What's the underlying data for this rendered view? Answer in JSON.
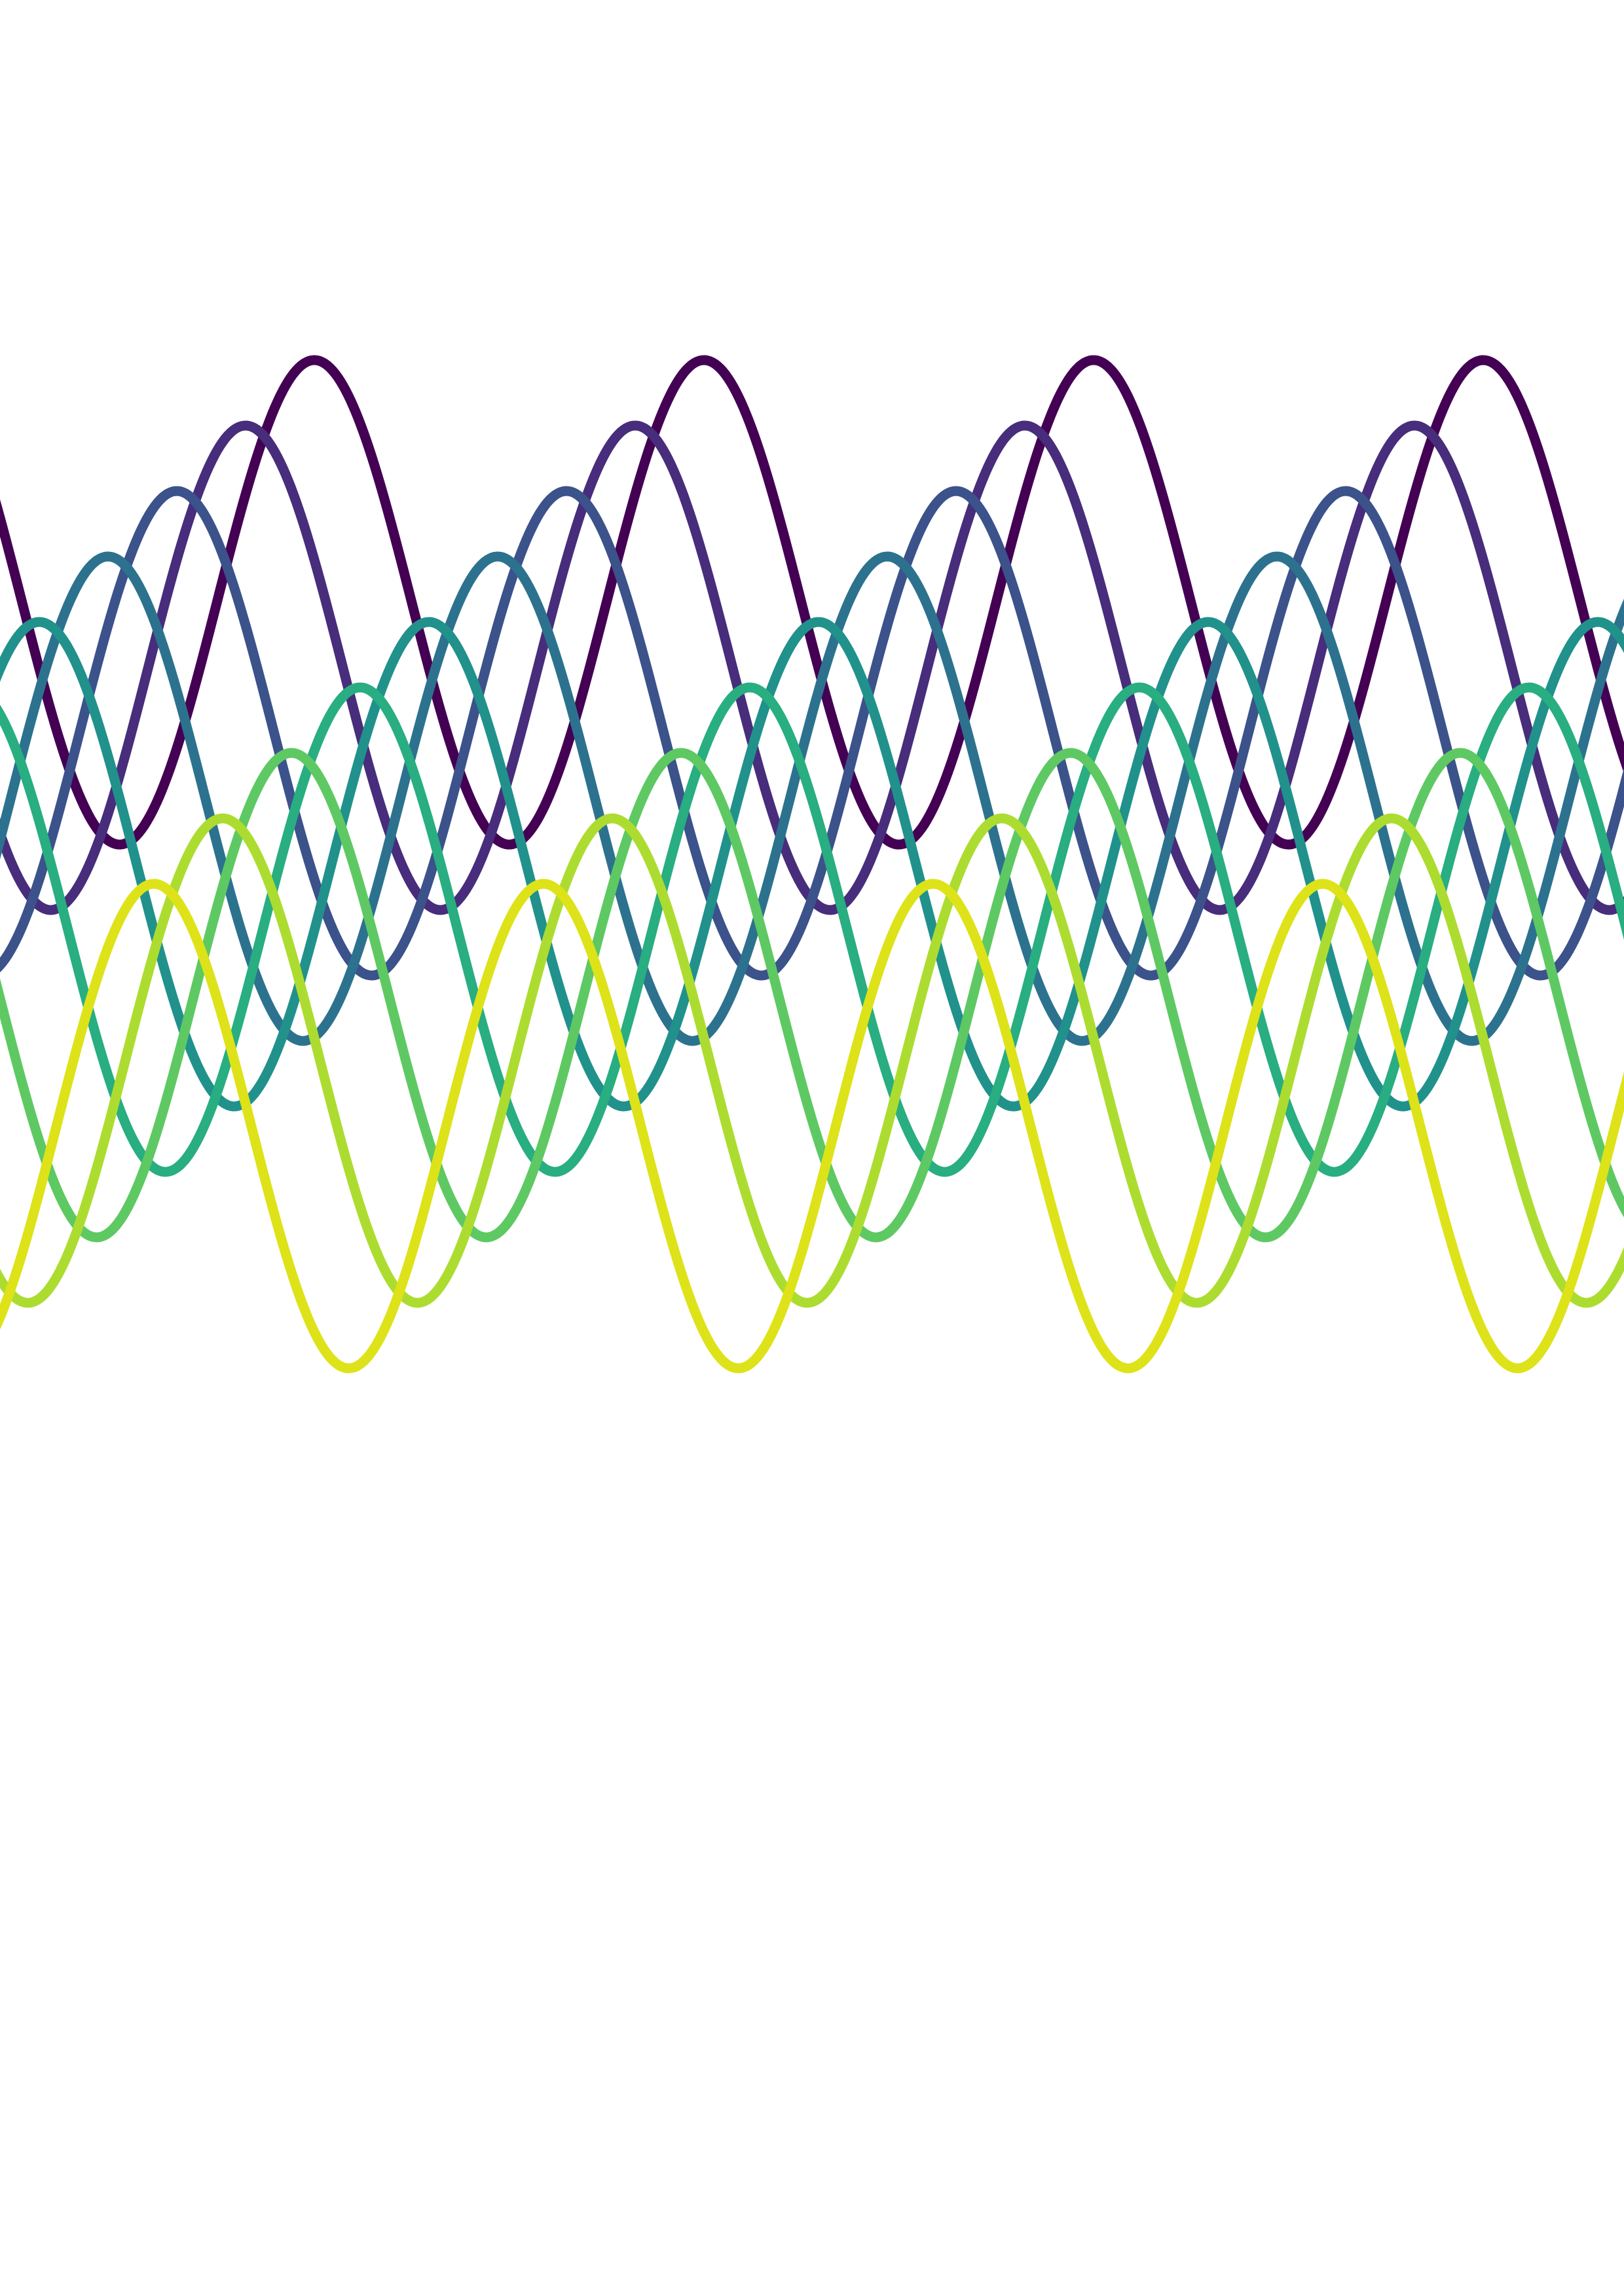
{
  "artwork": {
    "background": "#ffffff",
    "wave_count": 9,
    "waves": [
      {
        "color": "#440154"
      },
      {
        "color": "#472d7b"
      },
      {
        "color": "#3b528b"
      },
      {
        "color": "#2c728e"
      },
      {
        "color": "#21918c"
      },
      {
        "color": "#28ae80"
      },
      {
        "color": "#5ec962"
      },
      {
        "color": "#addc30"
      },
      {
        "color": "#dde318"
      }
    ]
  }
}
